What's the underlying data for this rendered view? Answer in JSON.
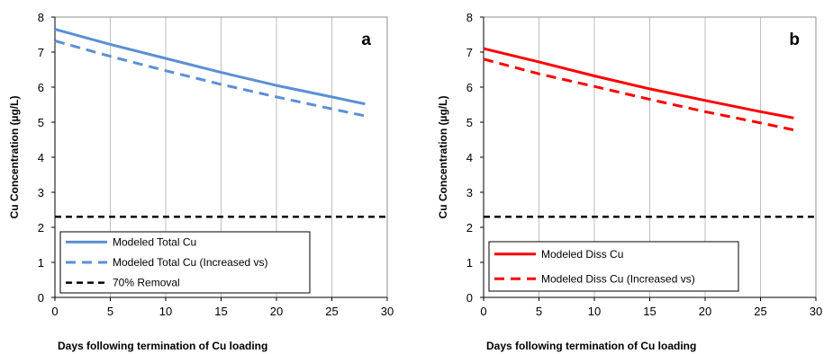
{
  "chart_data": [
    {
      "type": "line",
      "panel_label": "a",
      "xlabel": "Days following  termination of Cu loading",
      "ylabel": "Cu Concentration (µg/L)",
      "xlim": [
        0,
        30
      ],
      "ylim": [
        0,
        8
      ],
      "xticks": [
        0,
        5,
        10,
        15,
        20,
        25,
        30
      ],
      "yticks": [
        0,
        1,
        2,
        3,
        4,
        5,
        6,
        7,
        8
      ],
      "grid": "vertical",
      "legend_position": "bottom-left",
      "series": [
        {
          "name": "Modeled Total Cu",
          "color": "#5B8FD6",
          "style": "solid",
          "x": [
            0,
            5,
            10,
            15,
            20,
            25,
            28
          ],
          "y": [
            7.65,
            7.22,
            6.82,
            6.42,
            6.05,
            5.72,
            5.52
          ]
        },
        {
          "name": "Modeled Total Cu (Increased vs)",
          "color": "#5B8FD6",
          "style": "dashed",
          "x": [
            0,
            5,
            10,
            15,
            20,
            25,
            28
          ],
          "y": [
            7.32,
            6.88,
            6.47,
            6.08,
            5.72,
            5.38,
            5.18
          ]
        },
        {
          "name": "70% Removal",
          "color": "#000000",
          "style": "dashed",
          "x": [
            0,
            30
          ],
          "y": [
            2.3,
            2.3
          ]
        }
      ]
    },
    {
      "type": "line",
      "panel_label": "b",
      "xlabel": "Days following  termination of Cu loading",
      "ylabel": "Cu Concentration (µg/L)",
      "xlim": [
        0,
        30
      ],
      "ylim": [
        0,
        8
      ],
      "xticks": [
        0,
        5,
        10,
        15,
        20,
        25,
        30
      ],
      "yticks": [
        0,
        1,
        2,
        3,
        4,
        5,
        6,
        7,
        8
      ],
      "grid": "vertical",
      "legend_position": "bottom-left",
      "series": [
        {
          "name": "Modeled Diss Cu",
          "color": "#FF0000",
          "style": "solid",
          "x": [
            0,
            5,
            10,
            15,
            20,
            25,
            28
          ],
          "y": [
            7.1,
            6.72,
            6.32,
            5.95,
            5.62,
            5.3,
            5.12
          ]
        },
        {
          "name": "Modeled Diss Cu (Increased vs)",
          "color": "#FF0000",
          "style": "dashed",
          "x": [
            0,
            5,
            10,
            15,
            20,
            25,
            28
          ],
          "y": [
            6.8,
            6.38,
            6.02,
            5.65,
            5.3,
            4.98,
            4.78
          ]
        },
        {
          "name": "",
          "color": "#000000",
          "style": "dashed",
          "x": [
            0,
            30
          ],
          "y": [
            2.3,
            2.3
          ]
        }
      ]
    }
  ]
}
